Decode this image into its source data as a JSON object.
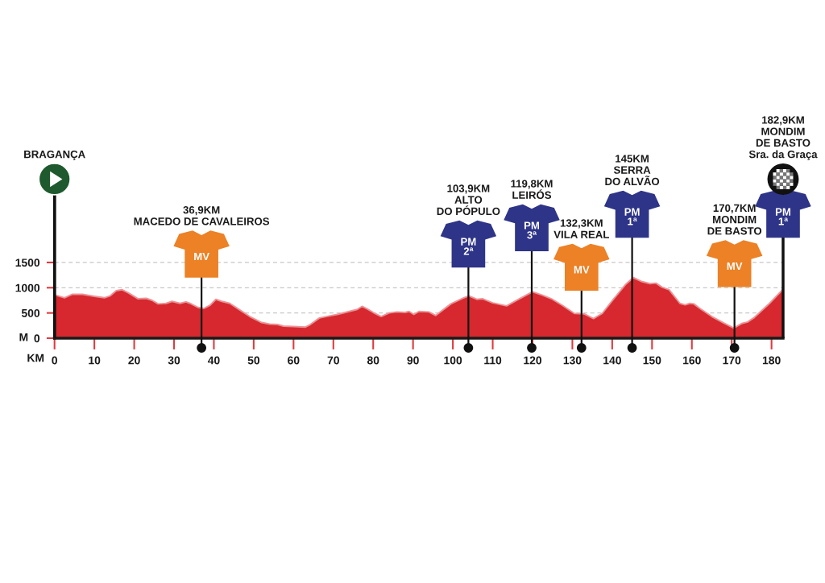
{
  "chart_data": {
    "type": "area",
    "xlabel": "KM",
    "ylabel": "M",
    "color": "#d6282e",
    "x": [
      0,
      2.5,
      4.5,
      7,
      10,
      12.5,
      14,
      15.5,
      17,
      18.5,
      21,
      23,
      24.5,
      26,
      28,
      29.5,
      31.5,
      33,
      34,
      36,
      37.5,
      39,
      40.5,
      42,
      44,
      46.5,
      49,
      52,
      54,
      56,
      57.5,
      60,
      63,
      64,
      66.5,
      69,
      71,
      74,
      76,
      77.2,
      78.5,
      80,
      82,
      84,
      86,
      88,
      89,
      90.2,
      91.5,
      94,
      95.7,
      99.5,
      102.5,
      104,
      106,
      107.5,
      110,
      113.5,
      116.5,
      120,
      122.5,
      125,
      127.5,
      130.5,
      133,
      135.3,
      137.5,
      140.3,
      143.3,
      145.3,
      147.5,
      149.5,
      151,
      152.5,
      154.3,
      157,
      158.3,
      159.5,
      160.5,
      162,
      165,
      168,
      170.5,
      172.5,
      174,
      175.5,
      179.5,
      182.9
    ],
    "values": [
      860,
      800,
      870,
      870,
      830,
      800,
      840,
      940,
      960,
      900,
      780,
      790,
      750,
      680,
      690,
      730,
      690,
      720,
      690,
      610,
      590,
      650,
      770,
      730,
      690,
      560,
      430,
      310,
      280,
      270,
      240,
      230,
      220,
      260,
      400,
      440,
      470,
      530,
      570,
      630,
      580,
      510,
      430,
      500,
      520,
      510,
      530,
      470,
      530,
      520,
      450,
      680,
      790,
      840,
      770,
      780,
      700,
      640,
      770,
      920,
      850,
      770,
      650,
      490,
      480,
      390,
      490,
      770,
      1060,
      1200,
      1120,
      1080,
      1090,
      1010,
      960,
      690,
      660,
      690,
      680,
      590,
      430,
      300,
      200,
      290,
      320,
      400,
      690,
      970
    ],
    "xlim": [
      0,
      182.9
    ],
    "ylim": [
      0,
      3150
    ],
    "xticks": [
      0,
      10,
      20,
      30,
      40,
      50,
      60,
      70,
      80,
      90,
      100,
      110,
      120,
      130,
      140,
      150,
      160,
      170,
      180
    ],
    "yticks": [
      0,
      500,
      1000,
      1500
    ],
    "grid": "y",
    "ref_lines": [
      {
        "axis": "x",
        "value": 0,
        "label": "BRAGANÇA",
        "color": "#111111"
      },
      {
        "axis": "x",
        "value": 36.9,
        "label": "36,9KM\nMACEDO DE CAVALEIROS",
        "color": "#111111"
      },
      {
        "axis": "x",
        "value": 103.9,
        "label": "103,9KM\nALTO\nDO PÓPULO",
        "color": "#111111"
      },
      {
        "axis": "x",
        "value": 119.8,
        "label": "119,8KM\nLEIRÓS",
        "color": "#111111"
      },
      {
        "axis": "x",
        "value": 132.3,
        "label": "132,3KM\nVILA REAL",
        "color": "#111111"
      },
      {
        "axis": "x",
        "value": 145,
        "label": "145KM\nSERRA\nDO ALVÃO",
        "color": "#111111"
      },
      {
        "axis": "x",
        "value": 170.7,
        "label": "170,7KM\nMONDIM\nDE BASTO",
        "color": "#111111"
      },
      {
        "axis": "x",
        "value": 182.9,
        "label": "182,9KM\nMONDIM\nDE BASTO\nSra. da Graça",
        "color": "#111111"
      }
    ],
    "annotations": [
      {
        "text": "MV",
        "x": 36.9,
        "y": 1600
      },
      {
        "text": "PM\n2ª",
        "x": 103.9,
        "y": 1800
      },
      {
        "text": "PM\n3ª",
        "x": 119.8,
        "y": 2120
      },
      {
        "text": "MV",
        "x": 132.3,
        "y": 1340
      },
      {
        "text": "PM\n1ª",
        "x": 145,
        "y": 2390
      },
      {
        "text": "MV",
        "x": 170.7,
        "y": 1410
      },
      {
        "text": "PM\n1ª",
        "x": 182.9,
        "y": 2390
      }
    ]
  }
}
